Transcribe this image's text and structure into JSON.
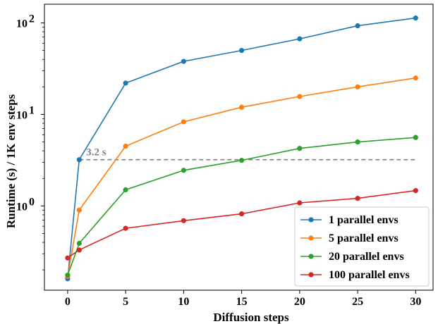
{
  "chart_data": {
    "type": "line",
    "xlabel": "Diffusion steps",
    "ylabel": "Runtime (s) / 1K env steps",
    "xlim": [
      -2,
      31.5
    ],
    "ylim": [
      0.12,
      160
    ],
    "yscale": "log",
    "x_ticks": [
      0,
      5,
      10,
      15,
      20,
      25,
      30
    ],
    "x_tick_labels": [
      "0",
      "5",
      "10",
      "15",
      "20",
      "25",
      "30"
    ],
    "y_ticks": [
      1,
      10,
      100
    ],
    "y_tick_base": "10",
    "y_tick_exponents": [
      "0",
      "1",
      "2"
    ],
    "grid": false,
    "legend_position": "bottom-right",
    "x": [
      0,
      1,
      5,
      10,
      15,
      20,
      25,
      30
    ],
    "series": [
      {
        "name": "1 parallel envs",
        "color": "#1f77b4",
        "values": [
          0.16,
          3.2,
          22,
          38,
          50,
          67,
          93,
          113
        ]
      },
      {
        "name": "5 parallel envs",
        "color": "#ff7f0e",
        "values": [
          0.17,
          0.9,
          4.5,
          8.3,
          12,
          15.7,
          20,
          25
        ]
      },
      {
        "name": "20 parallel envs",
        "color": "#2ca02c",
        "values": [
          0.175,
          0.39,
          1.5,
          2.45,
          3.15,
          4.25,
          5.0,
          5.6
        ]
      },
      {
        "name": "100 parallel envs",
        "color": "#d62728",
        "values": [
          0.27,
          0.33,
          0.57,
          0.69,
          0.82,
          1.08,
          1.21,
          1.47
        ]
      }
    ],
    "reference_line": {
      "y": 3.2,
      "x_start": 1,
      "x_end": 30,
      "color": "#808080"
    },
    "annotation": {
      "text": "3.2 s",
      "x": 1.6,
      "y": 3.2
    }
  }
}
